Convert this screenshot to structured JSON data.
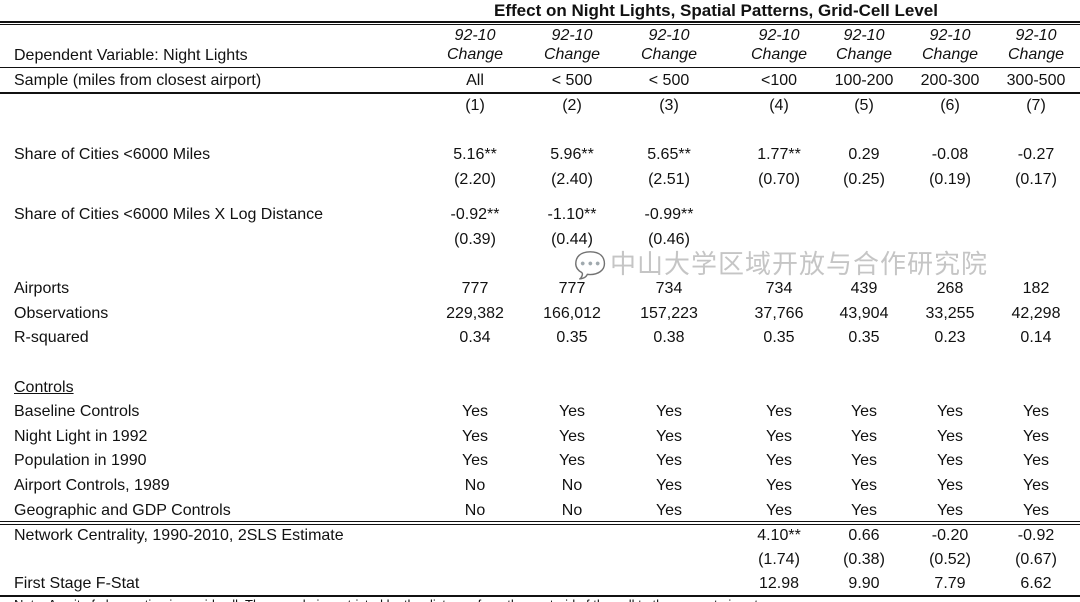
{
  "title": "Effect on Night Lights, Spatial Patterns, Grid-Cell Level",
  "dependent_label": "Dependent Variable: Night Lights",
  "sample_label": "Sample (miles from closest airport)",
  "columns": [
    {
      "line1": "92-10",
      "line2": "Change",
      "sample": "All",
      "num": "(1)"
    },
    {
      "line1": "92-10",
      "line2": "Change",
      "sample": "< 500",
      "num": "(2)"
    },
    {
      "line1": "92-10",
      "line2": "Change",
      "sample": "< 500",
      "num": "(3)"
    },
    {
      "line1": "92-10",
      "line2": "Change",
      "sample": "<100",
      "num": "(4)"
    },
    {
      "line1": "92-10",
      "line2": "Change",
      "sample": "100-200",
      "num": "(5)"
    },
    {
      "line1": "92-10",
      "line2": "Change",
      "sample": "200-300",
      "num": "(6)"
    },
    {
      "line1": "92-10",
      "line2": "Change",
      "sample": "300-500",
      "num": "(7)"
    }
  ],
  "rows": [
    {
      "label": "Share of Cities <6000 Miles",
      "values": [
        "5.16**",
        "5.96**",
        "5.65**",
        "1.77**",
        "0.29",
        "-0.08",
        "-0.27"
      ]
    },
    {
      "label": "",
      "values": [
        "(2.20)",
        "(2.40)",
        "(2.51)",
        "(0.70)",
        "(0.25)",
        "(0.19)",
        "(0.17)"
      ]
    },
    {
      "label": "Share of Cities <6000 Miles X Log Distance",
      "values": [
        "-0.92**",
        "-1.10**",
        "-0.99**",
        "",
        "",
        "",
        ""
      ]
    },
    {
      "label": "",
      "values": [
        "(0.39)",
        "(0.44)",
        "(0.46)",
        "",
        "",
        "",
        ""
      ]
    },
    {
      "label": "Airports",
      "values": [
        "777",
        "777",
        "734",
        "734",
        "439",
        "268",
        "182"
      ]
    },
    {
      "label": "Observations",
      "values": [
        "229,382",
        "166,012",
        "157,223",
        "37,766",
        "43,904",
        "33,255",
        "42,298"
      ]
    },
    {
      "label": "R-squared",
      "values": [
        "0.34",
        "0.35",
        "0.38",
        "0.35",
        "0.35",
        "0.23",
        "0.14"
      ]
    },
    {
      "label": "Controls",
      "values": [
        "",
        "",
        "",
        "",
        "",
        "",
        ""
      ]
    },
    {
      "label": "Baseline Controls",
      "values": [
        "Yes",
        "Yes",
        "Yes",
        "Yes",
        "Yes",
        "Yes",
        "Yes"
      ]
    },
    {
      "label": "Night Light in 1992",
      "values": [
        "Yes",
        "Yes",
        "Yes",
        "Yes",
        "Yes",
        "Yes",
        "Yes"
      ]
    },
    {
      "label": "Population in 1990",
      "values": [
        "Yes",
        "Yes",
        "Yes",
        "Yes",
        "Yes",
        "Yes",
        "Yes"
      ]
    },
    {
      "label": "Airport Controls, 1989",
      "values": [
        "No",
        "No",
        "Yes",
        "Yes",
        "Yes",
        "Yes",
        "Yes"
      ]
    },
    {
      "label": "Geographic and GDP Controls",
      "values": [
        "No",
        "No",
        "Yes",
        "Yes",
        "Yes",
        "Yes",
        "Yes"
      ]
    },
    {
      "label": "Network Centrality, 1990-2010, 2SLS Estimate",
      "values": [
        "",
        "",
        "",
        "4.10**",
        "0.66",
        "-0.20",
        "-0.92"
      ]
    },
    {
      "label": "",
      "values": [
        "",
        "",
        "",
        "(1.74)",
        "(0.38)",
        "(0.52)",
        "(0.67)"
      ]
    },
    {
      "label": "First Stage F-Stat",
      "values": [
        "",
        "",
        "",
        "12.98",
        "9.90",
        "7.79",
        "6.62"
      ]
    }
  ],
  "note": "Note: A unit of observation is a grid cell. The sample is restricted by the distance from the centroid of the cell to the nearest airport.",
  "watermark": "中山大学区域开放与合作研究院"
}
